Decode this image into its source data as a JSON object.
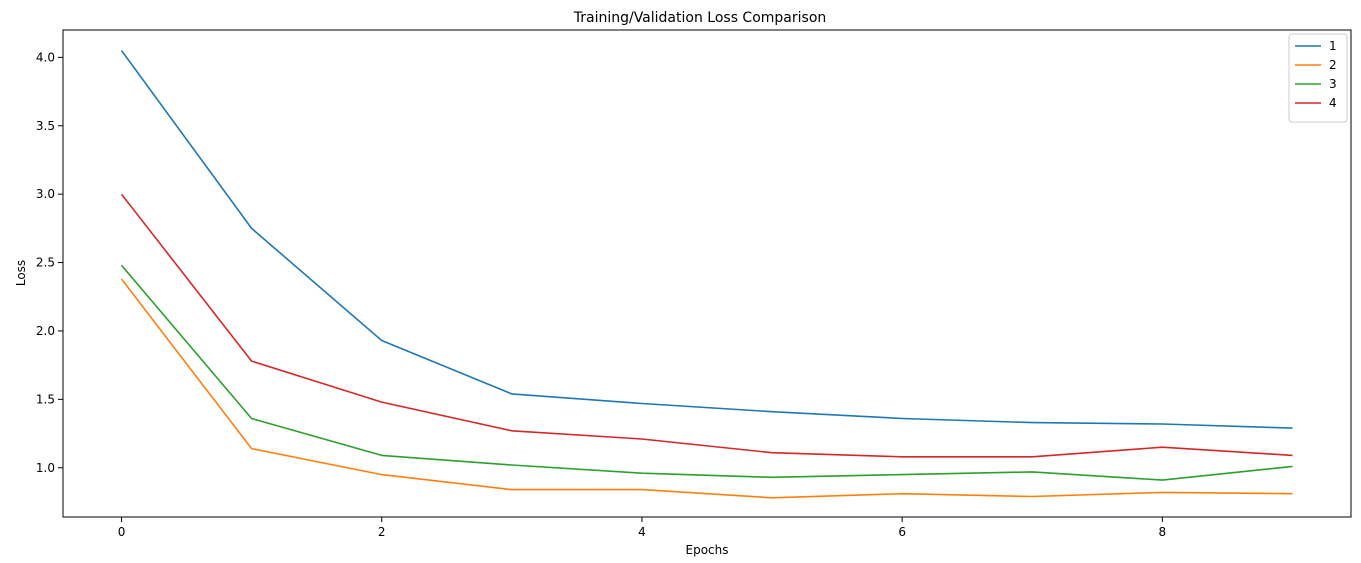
{
  "chart_data": {
    "type": "line",
    "title": "Training/Validation Loss Comparison",
    "xlabel": "Epochs",
    "ylabel": "Loss",
    "x": [
      0,
      1,
      2,
      3,
      4,
      5,
      6,
      7,
      8,
      9
    ],
    "xlim": [
      -0.45,
      9.45
    ],
    "ylim": [
      0.64,
      4.2
    ],
    "xticks": [
      0,
      2,
      4,
      6,
      8
    ],
    "yticks": [
      1.0,
      1.5,
      2.0,
      2.5,
      3.0,
      3.5,
      4.0
    ],
    "ytick_labels": [
      "1.0",
      "1.5",
      "2.0",
      "2.5",
      "3.0",
      "3.5",
      "4.0"
    ],
    "grid": false,
    "legend_position": "top-right",
    "series": [
      {
        "name": "1",
        "color": "#1f77b4",
        "values": [
          4.05,
          2.75,
          1.93,
          1.54,
          1.47,
          1.41,
          1.36,
          1.33,
          1.32,
          1.29
        ]
      },
      {
        "name": "2",
        "color": "#ff7f0e",
        "values": [
          2.38,
          1.14,
          0.95,
          0.84,
          0.84,
          0.78,
          0.81,
          0.79,
          0.82,
          0.81
        ]
      },
      {
        "name": "3",
        "color": "#2ca02c",
        "values": [
          2.48,
          1.36,
          1.09,
          1.02,
          0.96,
          0.93,
          0.95,
          0.97,
          0.91,
          1.01
        ]
      },
      {
        "name": "4",
        "color": "#d62728",
        "values": [
          3.0,
          1.78,
          1.48,
          1.27,
          1.21,
          1.11,
          1.08,
          1.08,
          1.15,
          1.09
        ]
      }
    ]
  }
}
